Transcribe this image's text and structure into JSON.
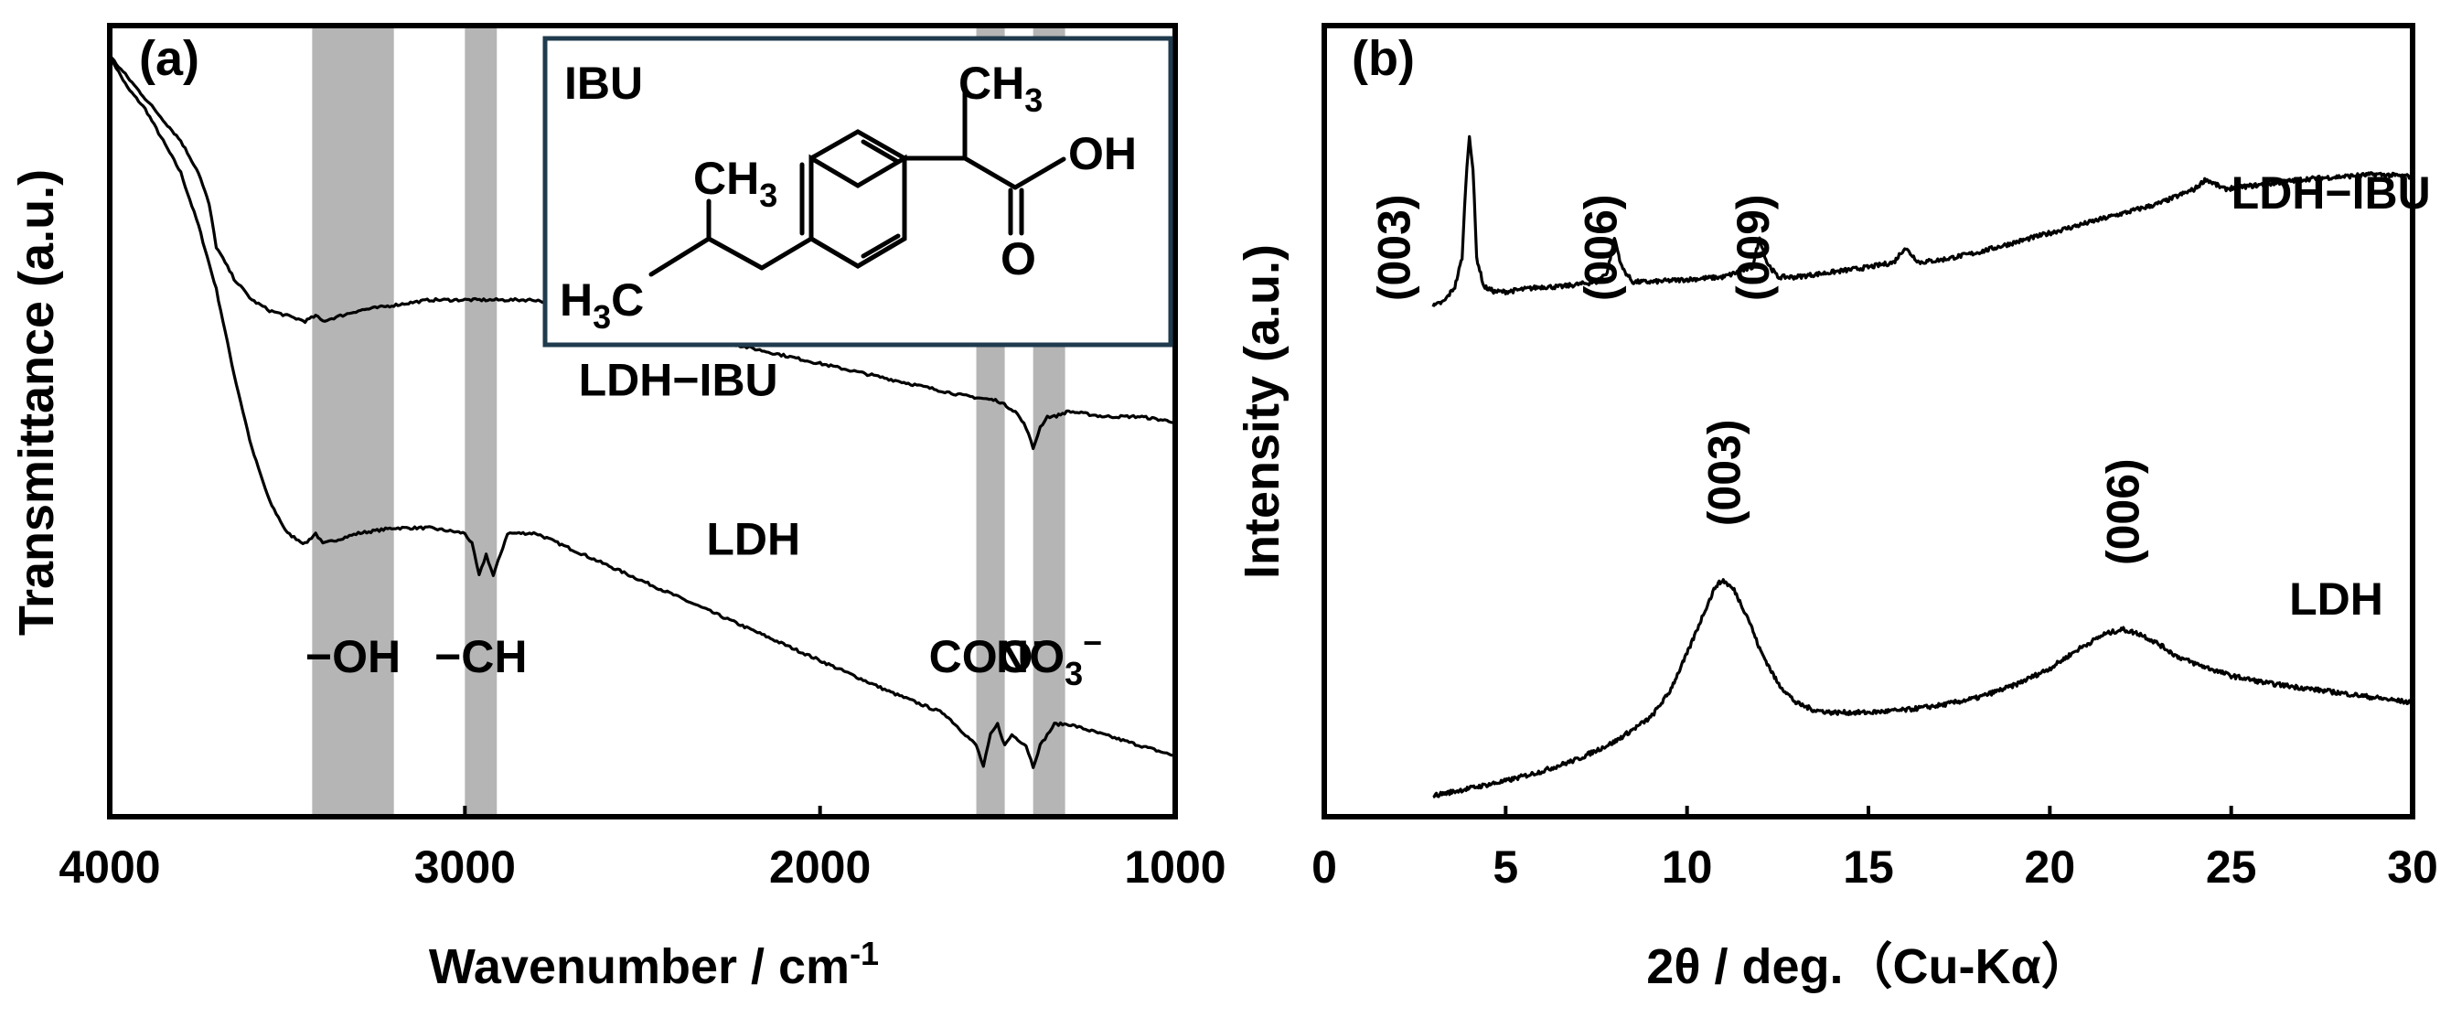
{
  "chart_data": [
    {
      "panel_label": "(a)",
      "type": "line",
      "xlabel": "Wavenumber / cm",
      "xlabel_sup": "-1",
      "ylabel": "Transmittance (a.u.)",
      "xlim": [
        4000,
        1000
      ],
      "x_reversed": true,
      "xticks": [
        "4000",
        "3000",
        "2000",
        "1000"
      ],
      "bands": [
        {
          "from": 3430,
          "to": 3200,
          "label": "−OH",
          "sub": "",
          "sup": ""
        },
        {
          "from": 3000,
          "to": 2910,
          "label": "−CH",
          "sub": "",
          "sup": ""
        },
        {
          "from": 1560,
          "to": 1480,
          "label": "COO",
          "sub": "",
          "sup": "−"
        },
        {
          "from": 1400,
          "to": 1310,
          "label": "NO",
          "sub": "3",
          "sup": "−"
        }
      ],
      "series": [
        {
          "name": "LDH−IBU",
          "x": [
            4000,
            3950,
            3900,
            3850,
            3800,
            3750,
            3700,
            3650,
            3600,
            3550,
            3500,
            3450,
            3420,
            3400,
            3350,
            3300,
            3200,
            3100,
            3000,
            2980,
            2960,
            2940,
            2920,
            2900,
            2880,
            2860,
            2800,
            2600,
            2400,
            2200,
            2000,
            1800,
            1650,
            1560,
            1540,
            1520,
            1500,
            1480,
            1460,
            1420,
            1400,
            1380,
            1360,
            1340,
            1300,
            1200,
            1100,
            1000
          ],
          "y": [
            100,
            97,
            95,
            92,
            89,
            84,
            78,
            70,
            63,
            58,
            55,
            54,
            55,
            54,
            54.5,
            55,
            55.5,
            55.5,
            55,
            54,
            51,
            53,
            51,
            53,
            55,
            55,
            55,
            52,
            49,
            46,
            43,
            40,
            38,
            35,
            33,
            36,
            37,
            35,
            36,
            35,
            33,
            35,
            36,
            37,
            37,
            36,
            35,
            34
          ]
        },
        {
          "name": "LDH",
          "x": [
            4000,
            3950,
            3900,
            3850,
            3800,
            3750,
            3720,
            3700,
            3650,
            3600,
            3550,
            3500,
            3450,
            3420,
            3400,
            3350,
            3300,
            3200,
            3100,
            3000,
            2900,
            2800,
            2600,
            2400,
            2200,
            2000,
            1800,
            1600,
            1500,
            1450,
            1420,
            1400,
            1380,
            1360,
            1340,
            1300,
            1200,
            1100,
            1000
          ],
          "y": [
            100,
            98,
            96,
            94,
            92,
            89,
            86,
            82,
            79,
            77,
            76,
            75.5,
            75,
            75.5,
            75,
            75.5,
            76,
            76.5,
            77,
            77,
            77,
            77,
            75.5,
            74,
            72.5,
            71,
            69.5,
            68,
            67.5,
            66.5,
            65,
            63,
            65,
            66,
            66,
            66.5,
            66,
            66,
            65.5
          ]
        }
      ],
      "annotations": [
        {
          "text": "LDH−IBU",
          "x": 2680,
          "y": 68
        },
        {
          "text": "LDH",
          "x": 2320,
          "y": 53
        }
      ]
    },
    {
      "panel_label": "(b)",
      "type": "line",
      "xlabel": "2θ / deg.（Cu-Kα）",
      "ylabel": "Intensity (a.u.)",
      "xlim": [
        0,
        30
      ],
      "xticks": [
        0,
        5,
        10,
        15,
        20,
        25,
        30
      ],
      "series": [
        {
          "name": "LDH−IBU",
          "x": [
            3.0,
            3.3,
            3.6,
            3.8,
            3.9,
            4.0,
            4.1,
            4.2,
            4.4,
            4.7,
            5.0,
            5.5,
            6.0,
            6.5,
            7.0,
            7.5,
            7.8,
            8.0,
            8.2,
            8.5,
            9.0,
            10.0,
            11.0,
            11.8,
            12.0,
            12.2,
            12.5,
            13.0,
            14.0,
            15.0,
            15.7,
            16.0,
            16.4,
            17.0,
            18.0,
            19.0,
            20.0,
            21.0,
            22.0,
            23.0,
            24.0,
            24.3,
            24.8,
            26.0,
            27.0,
            28.0,
            29.0,
            30.0
          ],
          "y": [
            100,
            101,
            104,
            110,
            125,
            135,
            128,
            110,
            104,
            103,
            103,
            103.5,
            104,
            104,
            104.5,
            105,
            107,
            114,
            108,
            105,
            105,
            105.5,
            106,
            108,
            114,
            109,
            106,
            106,
            107,
            108,
            109,
            112,
            109,
            109.5,
            111,
            113,
            115,
            117,
            119,
            121,
            124,
            126,
            124,
            125,
            126,
            126.5,
            127,
            126.5
          ]
        },
        {
          "name": "LDH",
          "x": [
            3.0,
            4.0,
            5.0,
            6.0,
            7.0,
            8.0,
            9.0,
            9.5,
            10.0,
            10.5,
            10.8,
            11.0,
            11.3,
            11.7,
            12.0,
            12.5,
            13.0,
            13.5,
            14.0,
            15.0,
            16.0,
            17.0,
            18.0,
            19.0,
            20.0,
            20.8,
            21.5,
            22.0,
            22.5,
            23.0,
            23.5,
            24.0,
            25.0,
            26.0,
            27.0,
            28.0,
            29.0,
            30.0
          ],
          "y": [
            0,
            1.5,
            3,
            5,
            7.5,
            11,
            16,
            21,
            29,
            38,
            43,
            44,
            42,
            36,
            30,
            23,
            19,
            17.5,
            17,
            17,
            17.5,
            18.5,
            20,
            22.5,
            26,
            30,
            33,
            34,
            33,
            31,
            28.5,
            27,
            24.5,
            23,
            22,
            21,
            20,
            19
          ]
        }
      ],
      "peak_labels": [
        {
          "text": "(003)",
          "x": 1.9,
          "y": 112
        },
        {
          "text": "(006)",
          "x": 7.6,
          "y": 112
        },
        {
          "text": "(009)",
          "x": 11.8,
          "y": 112
        },
        {
          "text": "(003)",
          "x": 11.0,
          "y": 66
        },
        {
          "text": "(006)",
          "x": 22.0,
          "y": 58
        }
      ],
      "annotations": [
        {
          "text": "LDH−IBU",
          "x": 25.0,
          "y": 120
        },
        {
          "text": "LDH",
          "x": 26.6,
          "y": 37
        }
      ]
    }
  ],
  "inset": {
    "title": "IBU",
    "groups": {
      "ch3_top": "CH",
      "ch3_top_sub": "3",
      "ch3_iso": "CH",
      "ch3_iso_sub": "3",
      "h3c_h": "H",
      "h3c_sub": "3",
      "h3c_c": "C",
      "oh": "OH",
      "o": "O"
    }
  }
}
